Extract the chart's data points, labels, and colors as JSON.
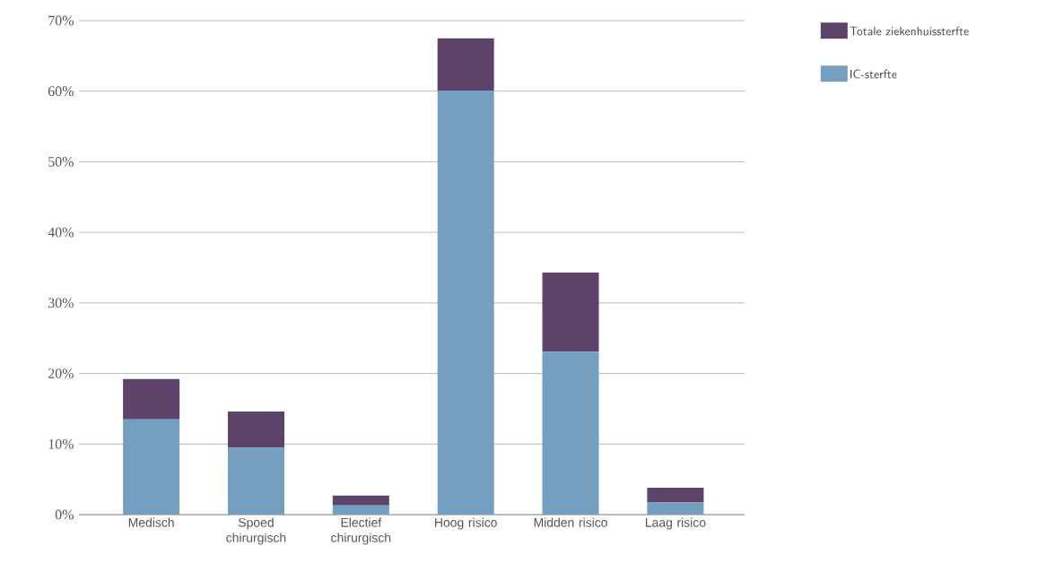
{
  "chart_data": {
    "type": "bar",
    "stacked": true,
    "categories": [
      "Medisch",
      "Spoed chirurgisch",
      "Electief chirurgisch",
      "Hoog risico",
      "Midden risico",
      "Laag risico"
    ],
    "series": [
      {
        "name": "IC-sterfte",
        "color": "#749fc0",
        "values": [
          13.5,
          9.5,
          1.3,
          60.1,
          23.1,
          1.7
        ]
      },
      {
        "name": "Totale ziekenhuissterfte",
        "color": "#5c4369",
        "values": [
          5.7,
          5.1,
          1.4,
          7.4,
          11.2,
          2.1
        ]
      }
    ],
    "ylim": [
      0,
      70
    ],
    "yticks": [
      {
        "value": 0,
        "label": "0%"
      },
      {
        "value": 10,
        "label": "10%"
      },
      {
        "value": 20,
        "label": "20%"
      },
      {
        "value": 30,
        "label": "30%"
      },
      {
        "value": 40,
        "label": "40%"
      },
      {
        "value": 50,
        "label": "50%"
      },
      {
        "value": 60,
        "label": "60%"
      },
      {
        "value": 70,
        "label": "70%"
      }
    ],
    "grid": "y",
    "legend": "top right"
  }
}
